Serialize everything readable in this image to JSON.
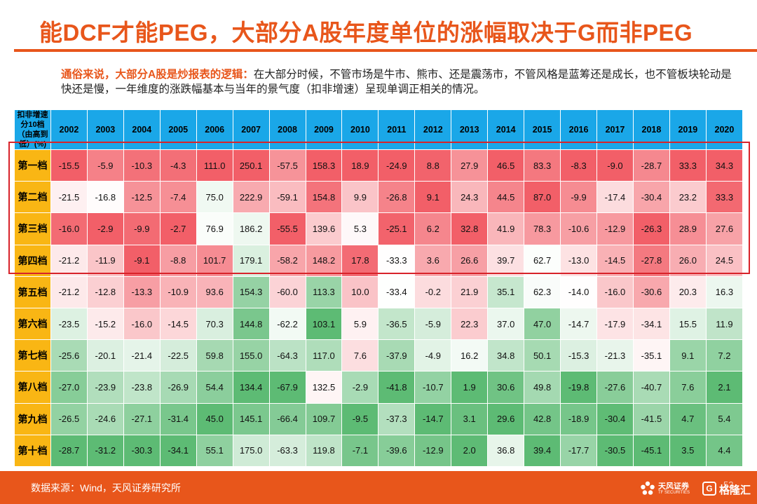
{
  "title": "能DCF才能PEG，大部分A股年度单位的涨幅取决于G而非PEG",
  "intro": {
    "highlight": "通俗来说，大部分A股是炒报表的逻辑：",
    "body": "在大部分时候，不管市场是牛市、熊市、还是震荡市，不管风格是蓝筹还是成长，也不管板块轮动是快还是慢，一年维度的涨跌幅基本与当年的景气度（扣非增速）呈现单调正相关的情况。"
  },
  "table": {
    "corner_label": "扣非增速分10档\n（由高到低）(%)",
    "years": [
      "2002",
      "2003",
      "2004",
      "2005",
      "2006",
      "2007",
      "2008",
      "2009",
      "2010",
      "2011",
      "2012",
      "2013",
      "2014",
      "2015",
      "2016",
      "2017",
      "2018",
      "2019",
      "2020"
    ],
    "rows": [
      {
        "label": "第一档",
        "values": [
          "-15.5",
          "-5.9",
          "-10.3",
          "-4.3",
          "111.0",
          "250.1",
          "-57.5",
          "158.3",
          "18.9",
          "-24.9",
          "8.8",
          "27.9",
          "46.5",
          "83.3",
          "-8.3",
          "-9.0",
          "-28.7",
          "33.3",
          "34.3"
        ]
      },
      {
        "label": "第二档",
        "values": [
          "-21.5",
          "-16.8",
          "-12.5",
          "-7.4",
          "75.0",
          "222.9",
          "-59.1",
          "154.8",
          "9.9",
          "-26.8",
          "9.1",
          "24.3",
          "44.5",
          "87.0",
          "-9.9",
          "-17.4",
          "-30.4",
          "23.2",
          "33.3"
        ]
      },
      {
        "label": "第三档",
        "values": [
          "-16.0",
          "-2.9",
          "-9.9",
          "-2.7",
          "76.9",
          "186.2",
          "-55.5",
          "139.6",
          "5.3",
          "-25.1",
          "6.2",
          "32.8",
          "41.9",
          "78.3",
          "-10.6",
          "-12.9",
          "-26.3",
          "28.9",
          "27.6"
        ]
      },
      {
        "label": "第四档",
        "values": [
          "-21.2",
          "-11.9",
          "-9.1",
          "-8.8",
          "101.7",
          "179.1",
          "-58.2",
          "148.2",
          "17.8",
          "-33.3",
          "3.6",
          "26.6",
          "39.7",
          "62.7",
          "-13.0",
          "-14.5",
          "-27.8",
          "26.0",
          "24.5"
        ]
      },
      {
        "label": "第五档",
        "values": [
          "-21.2",
          "-12.8",
          "-13.3",
          "-10.9",
          "93.6",
          "154.3",
          "-60.0",
          "113.3",
          "10.0",
          "-33.4",
          "-0.2",
          "21.9",
          "35.1",
          "62.3",
          "-14.0",
          "-16.0",
          "-30.6",
          "20.3",
          "16.3"
        ]
      },
      {
        "label": "第六档",
        "values": [
          "-23.5",
          "-15.2",
          "-16.0",
          "-14.5",
          "70.3",
          "144.8",
          "-62.2",
          "103.1",
          "5.9",
          "-36.5",
          "-5.9",
          "22.3",
          "37.0",
          "47.0",
          "-14.7",
          "-17.9",
          "-34.1",
          "15.5",
          "11.9"
        ]
      },
      {
        "label": "第七档",
        "values": [
          "-25.6",
          "-20.1",
          "-21.4",
          "-22.5",
          "59.8",
          "155.0",
          "-64.3",
          "117.0",
          "7.6",
          "-37.9",
          "-4.9",
          "16.2",
          "34.8",
          "50.1",
          "-15.3",
          "-21.3",
          "-35.1",
          "9.1",
          "7.2"
        ]
      },
      {
        "label": "第八档",
        "values": [
          "-27.0",
          "-23.9",
          "-23.8",
          "-26.9",
          "54.4",
          "134.4",
          "-67.9",
          "132.5",
          "-2.9",
          "-41.8",
          "-10.7",
          "1.9",
          "30.6",
          "49.8",
          "-19.8",
          "-27.6",
          "-40.7",
          "7.6",
          "2.1"
        ]
      },
      {
        "label": "第九档",
        "values": [
          "-26.5",
          "-24.6",
          "-27.1",
          "-31.4",
          "45.0",
          "145.1",
          "-66.4",
          "109.7",
          "-9.5",
          "-37.3",
          "-14.7",
          "3.1",
          "29.6",
          "42.8",
          "-18.9",
          "-30.4",
          "-41.5",
          "4.7",
          "5.4"
        ]
      },
      {
        "label": "第十档",
        "values": [
          "-28.7",
          "-31.2",
          "-30.3",
          "-34.1",
          "55.1",
          "175.0",
          "-63.3",
          "119.8",
          "-7.1",
          "-39.6",
          "-12.9",
          "2.0",
          "36.8",
          "39.4",
          "-17.7",
          "-30.5",
          "-45.1",
          "3.5",
          "4.4"
        ]
      }
    ]
  },
  "footer": {
    "source": "数据来源：Wind，天风证券研究所",
    "logo_cn": "天风证券",
    "logo_en": "TF SECURITIES",
    "watermark": "格隆汇",
    "page": "52"
  },
  "colors": {
    "title": "#e8561b",
    "header_bg": "#1aa7e8",
    "row_label_bg": "#f9b614",
    "highlight_box": "#d8232a",
    "high": "#f25f68",
    "mid": "#ffffff",
    "low": "#5dbb74"
  }
}
